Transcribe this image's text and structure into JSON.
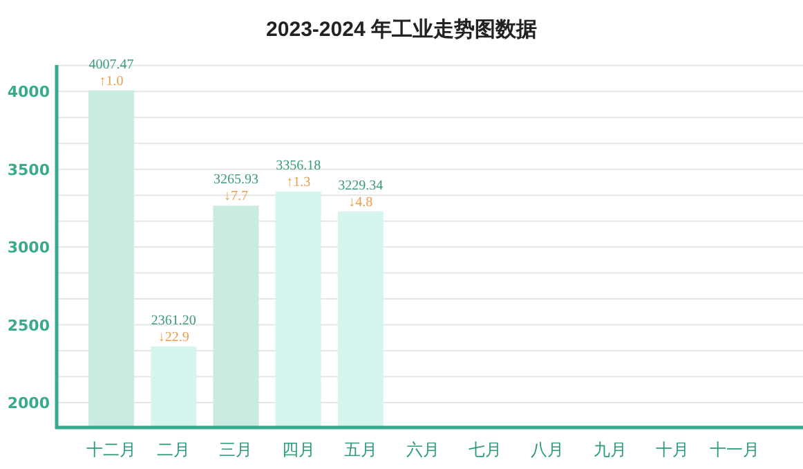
{
  "chart_data": {
    "type": "bar",
    "title": "2023-2024 年工业走势图数据",
    "categories": [
      "十二月",
      "二月",
      "三月",
      "四月",
      "五月",
      "六月",
      "七月",
      "八月",
      "九月",
      "十月",
      "十一月"
    ],
    "values": [
      4007.47,
      2361.2,
      3265.93,
      3356.18,
      3229.34,
      null,
      null,
      null,
      null,
      null,
      null
    ],
    "value_labels": [
      "4007.47",
      "2361.20",
      "3265.93",
      "3356.18",
      "3229.34",
      null,
      null,
      null,
      null,
      null,
      null
    ],
    "colors": [
      "#c9ebe2",
      "#d5f5ee",
      "#c9ebe2",
      "#d5f5ee",
      "#d5f5ee",
      null,
      null,
      null,
      null,
      null,
      null
    ],
    "annotations": [
      {
        "text": "↑1.0",
        "x": "十二月",
        "y": 4007.47
      },
      {
        "text": "↓22.9",
        "x": "二月",
        "y": 2361.2
      },
      {
        "text": "↓7.7",
        "x": "三月",
        "y": 3265.93
      },
      {
        "text": "↑1.3",
        "x": "四月",
        "y": 3356.18
      },
      {
        "text": "↓4.8",
        "x": "五月",
        "y": 3229.34
      }
    ],
    "ylim": [
      1840,
      4170
    ],
    "yticks": [
      2000,
      {
        "value": 2166.67,
        "label": null
      },
      {
        "value": 2333.33,
        "label": null
      },
      2500,
      {
        "value": 2666.67,
        "label": null
      },
      {
        "value": 2833.33,
        "label": null
      },
      3000,
      {
        "value": 3166.67,
        "label": null
      },
      {
        "value": 3333.33,
        "label": null
      },
      3500,
      {
        "value": 3666.67,
        "label": null
      },
      {
        "value": 3833.33,
        "label": null
      },
      4000,
      {
        "value": 4166.67,
        "label": null
      }
    ],
    "grid": "y"
  }
}
